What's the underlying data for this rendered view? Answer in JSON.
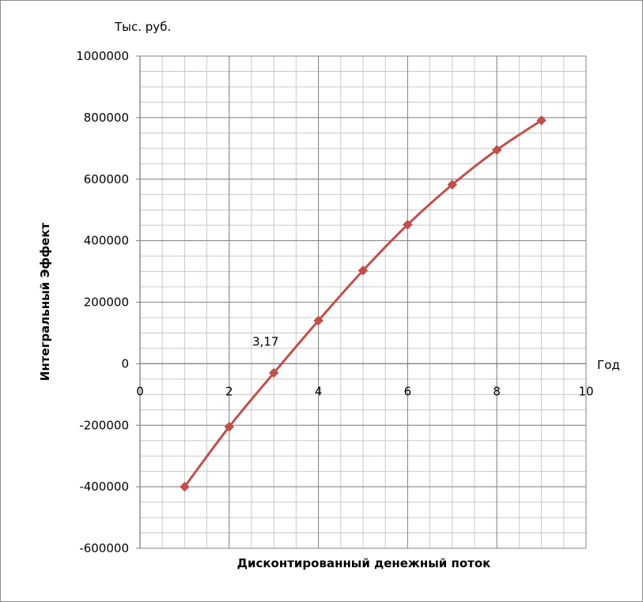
{
  "chart_data": {
    "type": "line",
    "xlabel": "Дисконтированный денежный поток",
    "ylabel": "Интегральный Эффект",
    "y_unit_label": "Тыс. руб.",
    "x_axis_end_label": "Год",
    "xlim": [
      0,
      10
    ],
    "ylim": [
      -600000,
      1000000
    ],
    "x_ticks": [
      0,
      2,
      4,
      6,
      8,
      10
    ],
    "y_ticks": [
      -600000,
      -400000,
      -200000,
      0,
      200000,
      400000,
      600000,
      800000,
      1000000
    ],
    "x_tick_labels": [
      "0",
      "2",
      "4",
      "6",
      "8",
      "10"
    ],
    "y_tick_labels": [
      "-600000",
      "-400000",
      "-200000",
      "0",
      "200000",
      "400000",
      "600000",
      "800000",
      "1000000"
    ],
    "grid": true,
    "series": [
      {
        "x": [
          1,
          2,
          3,
          4,
          5,
          6,
          7,
          8,
          9
        ],
        "values": [
          -400000,
          -205000,
          -30000,
          140000,
          303000,
          452000,
          582000,
          695000,
          791000
        ],
        "color": "#c0504d",
        "marker": "diamond"
      }
    ],
    "annotations": [
      {
        "text": "3,17",
        "x": 3.17,
        "y": 0
      }
    ]
  }
}
